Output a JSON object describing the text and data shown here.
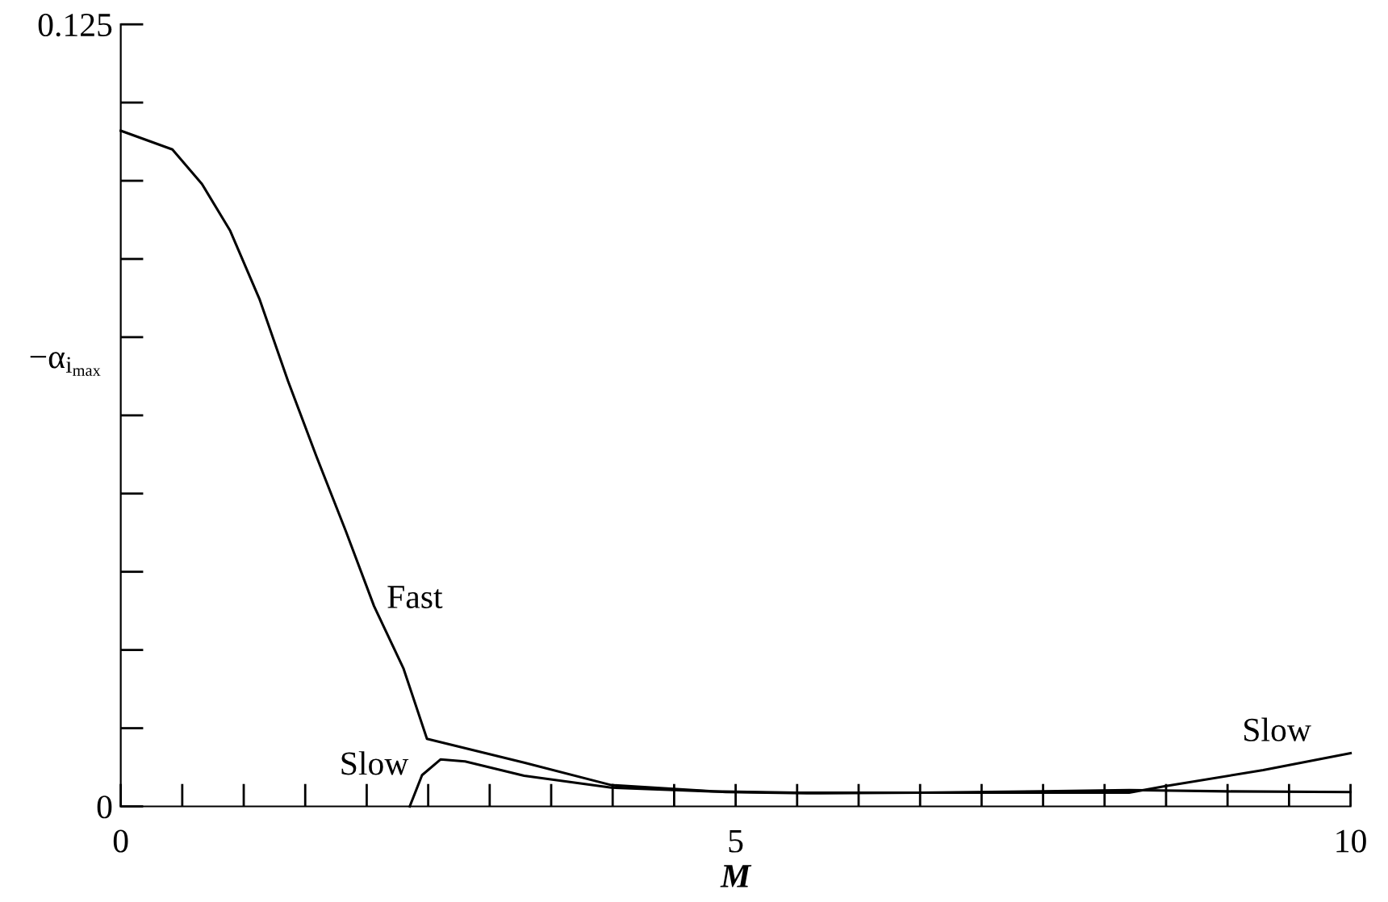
{
  "chart_data": {
    "type": "line",
    "xlabel": "M",
    "ylabel": "−α$_{i}$$_{max}$",
    "xlim": [
      0,
      10
    ],
    "ylim": [
      0,
      0.125
    ],
    "xticks": [
      0,
      {
        "value": 0.5,
        "label": null
      },
      {
        "value": 1,
        "label": null
      },
      {
        "value": 1.5,
        "label": null
      },
      {
        "value": 2,
        "label": null
      },
      {
        "value": 2.5,
        "label": null
      },
      {
        "value": 3,
        "label": null
      },
      {
        "value": 3.5,
        "label": null
      },
      {
        "value": 4,
        "label": null
      },
      {
        "value": 4.5,
        "label": null
      },
      5,
      {
        "value": 5.5,
        "label": null
      },
      {
        "value": 6,
        "label": null
      },
      {
        "value": 6.5,
        "label": null
      },
      {
        "value": 7,
        "label": null
      },
      {
        "value": 7.5,
        "label": null
      },
      {
        "value": 8,
        "label": null
      },
      {
        "value": 8.5,
        "label": null
      },
      {
        "value": 9,
        "label": null
      },
      {
        "value": 9.5,
        "label": null
      },
      10
    ],
    "yticks": [
      0,
      {
        "value": 0.0125,
        "label": null
      },
      {
        "value": 0.025,
        "label": null
      },
      {
        "value": 0.0375,
        "label": null
      },
      {
        "value": 0.05,
        "label": null
      },
      {
        "value": 0.0625,
        "label": null
      },
      {
        "value": 0.075,
        "label": null
      },
      {
        "value": 0.0875,
        "label": null
      },
      {
        "value": 0.1,
        "label": null
      },
      {
        "value": 0.1125,
        "label": null
      },
      0.125
    ],
    "grid": false,
    "marker": "none",
    "line_style": "solid",
    "series": [
      {
        "color": "#000000",
        "x": [
          0,
          0.42,
          0.66,
          0.89,
          1.13,
          1.36,
          1.59,
          1.83,
          2.06,
          2.3,
          2.49,
          3.28,
          3.99,
          4.92,
          5.58,
          6.5,
          7.5,
          8.2,
          9.0,
          10
        ],
        "values": [
          0.108,
          0.105,
          0.0995,
          0.092,
          0.081,
          0.068,
          0.056,
          0.044,
          0.032,
          0.022,
          0.0108,
          0.007,
          0.0034,
          0.0023,
          0.0021,
          0.0022,
          0.0024,
          0.0026,
          0.0024,
          0.0023
        ]
      },
      {
        "color": "#000000",
        "x": [
          2.35,
          2.45,
          2.6,
          2.8,
          3.28,
          3.99,
          4.8,
          5.5,
          6.5,
          7.5,
          8.2,
          8.48,
          9.29,
          10
        ],
        "values": [
          0,
          0.005,
          0.0075,
          0.0072,
          0.0049,
          0.003,
          0.0024,
          0.0022,
          0.0022,
          0.0022,
          0.0022,
          0.0032,
          0.0058,
          0.0085
        ]
      }
    ],
    "annotations": [
      "Fast",
      "Slow",
      "Slow"
    ]
  }
}
